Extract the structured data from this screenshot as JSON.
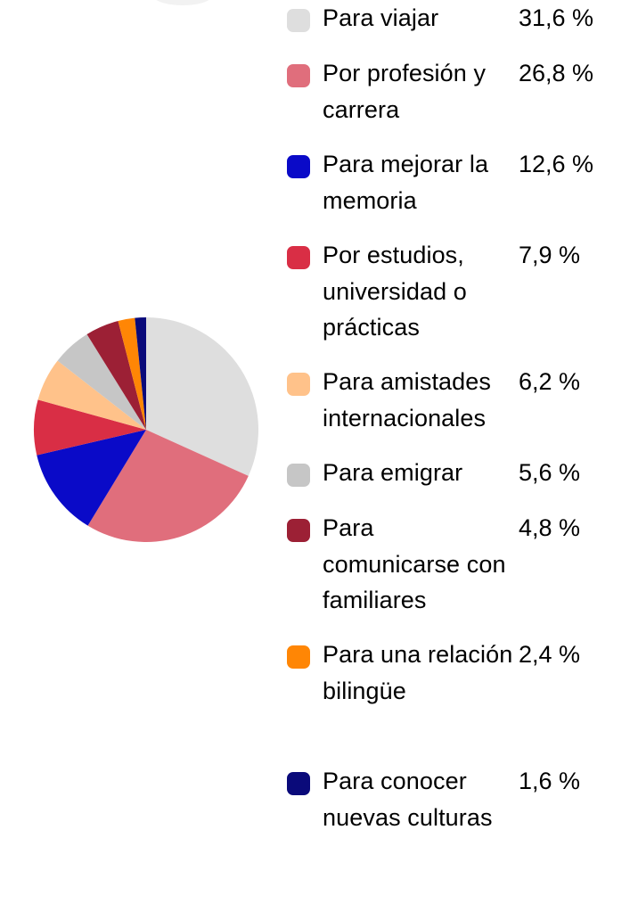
{
  "chart_data": {
    "type": "pie",
    "title": "",
    "categories": [
      "Para viajar",
      "Por profesión y carrera",
      "Para mejorar la memoria",
      "Por estudios, universidad o prácticas",
      "Para amistades internacionales",
      "Para emigrar",
      "Para comunicarse con familiares",
      "Para una relación bilingüe",
      "Para conocer nuevas culturas"
    ],
    "values": [
      31.6,
      26.8,
      12.6,
      7.9,
      6.2,
      5.6,
      4.8,
      2.4,
      1.6
    ],
    "value_labels": [
      "31,6 %",
      "26,8 %",
      "12,6 %",
      "7,9 %",
      "6,2 %",
      "5,6 %",
      "4,8 %",
      "2,4 %",
      "1,6 %"
    ],
    "colors": [
      "#dedede",
      "#e06e7c",
      "#0a0ac8",
      "#d92e45",
      "#ffc28a",
      "#c6c6c6",
      "#9c2035",
      "#ff8605",
      "#0a0a7a"
    ],
    "legend_position": "right",
    "start_angle": "top",
    "direction": "clockwise"
  }
}
